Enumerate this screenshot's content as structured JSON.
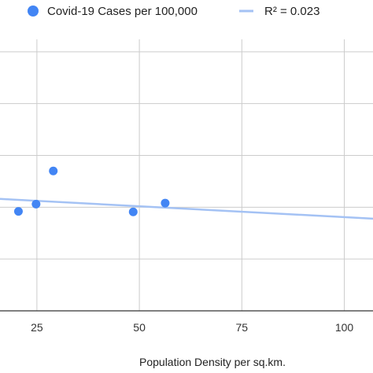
{
  "chart_data": {
    "type": "scatter",
    "title": "",
    "xlabel": "Population Density per sq.km.",
    "ylabel": "",
    "xlim": [
      16,
      107
    ],
    "ylim": [
      0,
      6
    ],
    "x_ticks": [
      25,
      50,
      75,
      100
    ],
    "x_tick_labels": [
      "25",
      "50",
      "75",
      "100"
    ],
    "y_gridlines": [
      1,
      2,
      3,
      4,
      5
    ],
    "grid": true,
    "legend_position": "top",
    "series": [
      {
        "name": "Covid-19 Cases per 100,000",
        "color": "#4285f4",
        "points": [
          {
            "x": 20.5,
            "y": 1.92
          },
          {
            "x": 24.8,
            "y": 2.06
          },
          {
            "x": 29.0,
            "y": 2.7
          },
          {
            "x": 48.5,
            "y": 1.91
          },
          {
            "x": 56.3,
            "y": 2.08
          }
        ]
      }
    ],
    "trendline": {
      "label": "R² = 0.023",
      "color": "#a4c2f4",
      "start": {
        "x": 16,
        "y": 2.16
      },
      "end": {
        "x": 107,
        "y": 1.78
      }
    }
  }
}
